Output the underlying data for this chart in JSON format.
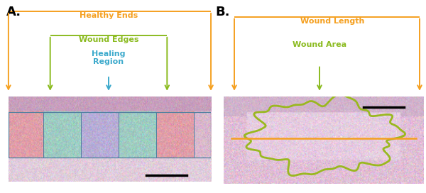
{
  "panel_A": {
    "label": "A.",
    "label_fontsize": 13,
    "label_weight": "bold",
    "healthy_ends_text": "Healthy Ends",
    "healthy_ends_color": "#F5A020",
    "wound_edges_text": "Wound Edges",
    "wound_edges_color": "#8BBB20",
    "healing_region_text": "Healing\nRegion",
    "healing_region_color": "#3DAACC",
    "box_colors_top": [
      "#E08888",
      "#88BEB8",
      "#A8A0CC",
      "#88BEB8",
      "#E08888"
    ],
    "box_edge_color": "#5080A0"
  },
  "panel_B": {
    "label": "B.",
    "label_fontsize": 13,
    "label_weight": "bold",
    "wound_length_text": "Wound Length",
    "wound_length_color": "#F5A020",
    "wound_area_text": "Wound Area",
    "wound_area_color": "#8BBB20",
    "outline_color": "#9AB820",
    "line_color": "#F5A020"
  },
  "orange_color": "#F5A020",
  "green_color": "#8BBB20",
  "blue_color": "#3DAACC",
  "fig_width": 6.0,
  "fig_height": 2.72
}
